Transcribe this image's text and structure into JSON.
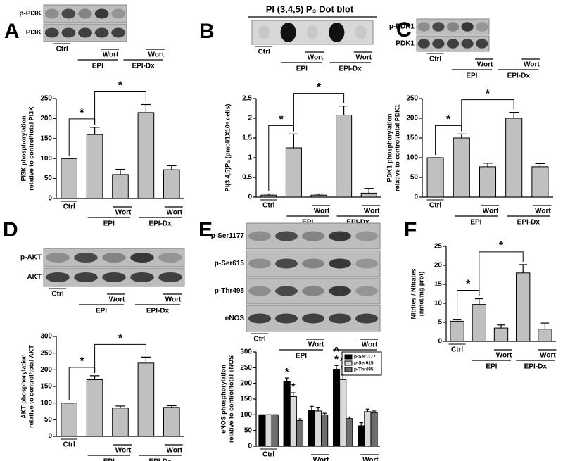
{
  "chart_data": [
    {
      "type": "bar",
      "panel": "A",
      "blot_rows": [
        "p-PI3K",
        "PI3K"
      ],
      "ylabel": [
        "PI3K phosphorylation",
        "relative to control/total PI3K"
      ],
      "categories": [
        "Ctrl",
        null,
        "Wort",
        null,
        "Wort"
      ],
      "groups": [
        {
          "name": "EPI",
          "categories": [
            1,
            2
          ]
        },
        {
          "name": "EPI-Dx",
          "categories": [
            3,
            4
          ]
        }
      ],
      "values": [
        100,
        160,
        60,
        215,
        72
      ],
      "errors": [
        0,
        18,
        13,
        20,
        10
      ],
      "color": "#c0c0c0",
      "ylim": [
        0,
        250
      ],
      "yticks": [
        0,
        50,
        100,
        150,
        200,
        250
      ],
      "brackets": [
        {
          "from": 0,
          "to": 1,
          "text": "*"
        },
        {
          "from": 1,
          "to": 3,
          "text": "*"
        }
      ]
    },
    {
      "type": "bar",
      "panel": "B",
      "title": "PI (3,4,5) P₃ Dot blot",
      "dot_blot": true,
      "ylabel": [
        "PI(3,4,5)P₃ (pmol/1X10⁶ cells)"
      ],
      "categories": [
        "Ctrl",
        null,
        "Wort",
        null,
        "Wort"
      ],
      "groups": [
        {
          "name": "EPI",
          "categories": [
            1,
            2
          ]
        },
        {
          "name": "EPI-Dx",
          "categories": [
            3,
            4
          ]
        }
      ],
      "values": [
        0.05,
        1.25,
        0.05,
        2.08,
        0.1
      ],
      "errors": [
        0.03,
        0.35,
        0.03,
        0.23,
        0.12
      ],
      "color": "#c0c0c0",
      "ylim": [
        0,
        2.5
      ],
      "yticks": [
        0,
        0.5,
        1,
        1.5,
        2,
        2.5
      ],
      "brackets": [
        {
          "from": 0,
          "to": 1,
          "text": "*"
        },
        {
          "from": 1,
          "to": 3,
          "text": "*"
        }
      ]
    },
    {
      "type": "bar",
      "panel": "C",
      "blot_rows": [
        "p-PDK1",
        "PDK1"
      ],
      "ylabel": [
        "PDK1 phosphorylation",
        "relative to control/total PDK1"
      ],
      "categories": [
        "Ctrl",
        null,
        "Wort",
        null,
        "Wort"
      ],
      "groups": [
        {
          "name": "EPI",
          "categories": [
            1,
            2
          ]
        },
        {
          "name": "EPI-Dx",
          "categories": [
            3,
            4
          ]
        }
      ],
      "values": [
        100,
        150,
        77,
        200,
        77
      ],
      "errors": [
        0,
        10,
        9,
        15,
        8
      ],
      "color": "#c0c0c0",
      "ylim": [
        0,
        250
      ],
      "yticks": [
        0,
        50,
        100,
        150,
        200,
        250
      ],
      "brackets": [
        {
          "from": 0,
          "to": 1,
          "text": "*"
        },
        {
          "from": 1,
          "to": 3,
          "text": "*"
        }
      ]
    },
    {
      "type": "bar",
      "panel": "D",
      "blot_rows": [
        "p-AKT",
        "AKT"
      ],
      "ylabel": [
        "AKT phosphorylation",
        "relative to control/total AKT"
      ],
      "categories": [
        "Ctrl",
        null,
        "Wort",
        null,
        "Wort"
      ],
      "groups": [
        {
          "name": "EPI",
          "categories": [
            1,
            2
          ]
        },
        {
          "name": "EPI-Dx",
          "categories": [
            3,
            4
          ]
        }
      ],
      "values": [
        100,
        170,
        85,
        220,
        87
      ],
      "errors": [
        0,
        12,
        6,
        18,
        5
      ],
      "color": "#c0c0c0",
      "ylim": [
        0,
        300
      ],
      "yticks": [
        0,
        50,
        100,
        150,
        200,
        250,
        300
      ],
      "brackets": [
        {
          "from": 0,
          "to": 1,
          "text": "*"
        },
        {
          "from": 1,
          "to": 3,
          "text": "*"
        }
      ]
    },
    {
      "type": "grouped_bar",
      "panel": "E",
      "blot_rows": [
        "p-Ser1177",
        "p-Ser615",
        "p-Thr495",
        "eNOS"
      ],
      "ylabel": [
        "eNOS phosphorylation",
        "relative to control/total eNOS"
      ],
      "categories": [
        "Ctrl",
        null,
        "Wort",
        null,
        "Wort"
      ],
      "groups": [
        {
          "name": "EPI",
          "categories": [
            1,
            2
          ]
        },
        {
          "name": "EPI-Dx",
          "categories": [
            3,
            4
          ]
        }
      ],
      "series": [
        {
          "name": "p-Ser1177",
          "color": "#000000",
          "values": [
            100,
            205,
            115,
            245,
            65
          ],
          "errors": [
            0,
            12,
            12,
            12,
            10
          ],
          "flags": [
            [],
            [
              "*"
            ],
            [],
            [
              "*",
              "^"
            ],
            []
          ]
        },
        {
          "name": "p-Ser615",
          "color": "#d9d9d9",
          "values": [
            100,
            158,
            112,
            212,
            110
          ],
          "errors": [
            0,
            12,
            12,
            15,
            8
          ],
          "flags": [
            [],
            [
              "*"
            ],
            [],
            [
              "*",
              "^"
            ],
            []
          ]
        },
        {
          "name": "p-Thr495",
          "color": "#6e6e6e",
          "values": [
            100,
            82,
            100,
            88,
            107
          ],
          "errors": [
            0,
            5,
            5,
            5,
            5
          ],
          "flags": [
            [],
            [],
            [],
            [],
            []
          ]
        }
      ],
      "ylim": [
        0,
        300
      ],
      "yticks": [
        0,
        50,
        100,
        150,
        200,
        250,
        300
      ]
    },
    {
      "type": "bar",
      "panel": "F",
      "ylabel": [
        "Nitrites / Nitrates",
        "(nmol/mg prot)"
      ],
      "categories": [
        "Ctrl",
        null,
        "Wort",
        null,
        "Wort"
      ],
      "groups": [
        {
          "name": "EPI",
          "categories": [
            1,
            2
          ]
        },
        {
          "name": "EPI-Dx",
          "categories": [
            3,
            4
          ]
        }
      ],
      "values": [
        5.3,
        9.7,
        3.5,
        18,
        3.2
      ],
      "errors": [
        0.5,
        1.5,
        0.8,
        2.2,
        1.6
      ],
      "color": "#c0c0c0",
      "ylim": [
        0,
        25
      ],
      "yticks": [
        0,
        5,
        10,
        15,
        20,
        25
      ],
      "brackets": [
        {
          "from": 0,
          "to": 1,
          "text": "*"
        },
        {
          "from": 1,
          "to": 3,
          "text": "*"
        }
      ]
    }
  ]
}
